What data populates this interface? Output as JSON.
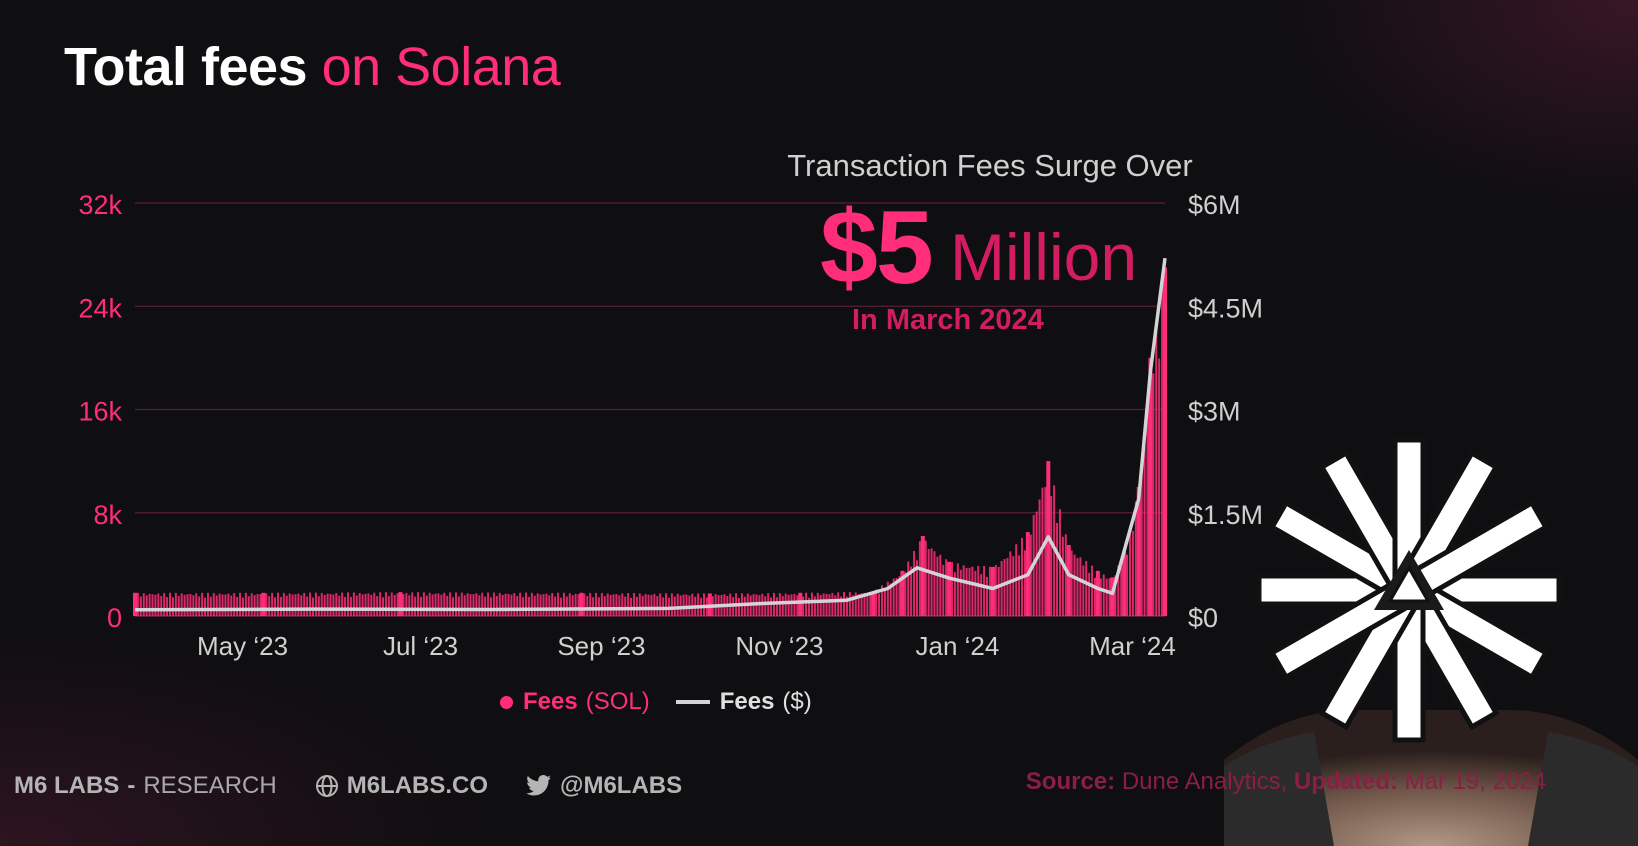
{
  "title": {
    "main": "Total fees",
    "accent": "on Solana"
  },
  "annotation": {
    "line1": "Transaction Fees Surge Over",
    "big": "$5",
    "unit": "Million",
    "date": "In March 2024"
  },
  "colors": {
    "accent": "#ff2d7a",
    "accent_dark": "#d41c63",
    "usd_line": "#d4d4d4",
    "gridline": "#5a1f35",
    "background": "#0f0e10"
  },
  "chart_data": {
    "type": "bar",
    "title": "Total fees on Solana",
    "grid": "horizontal",
    "legend_placement": "bottom-center",
    "x_axis": {
      "range": [
        "2023-04-01",
        "2024-03-19"
      ],
      "ticks": [
        {
          "date": "2023-05-01",
          "label": "May ‘23"
        },
        {
          "date": "2023-07-01",
          "label": "Jul ‘23"
        },
        {
          "date": "2023-09-01",
          "label": "Sep ‘23"
        },
        {
          "date": "2023-11-01",
          "label": "Nov ‘23"
        },
        {
          "date": "2024-01-01",
          "label": "Jan ‘24"
        },
        {
          "date": "2024-03-01",
          "label": "Mar ‘24"
        }
      ]
    },
    "y_left": {
      "range": [
        0,
        32000
      ],
      "ticks": [
        "0",
        "8k",
        "16k",
        "24k",
        "32k"
      ]
    },
    "y_right": {
      "range": [
        0,
        6000000
      ],
      "ticks": [
        "$0",
        "$1.5M",
        "$3M",
        "$4.5M",
        "$6M"
      ]
    },
    "series": [
      {
        "name": "Fees",
        "unit": "(SOL)",
        "type": "bar",
        "axis": "left",
        "points": [
          [
            "2023-04-01",
            1800
          ],
          [
            "2023-05-15",
            1800
          ],
          [
            "2023-07-01",
            1850
          ],
          [
            "2023-09-01",
            1800
          ],
          [
            "2023-10-15",
            1750
          ],
          [
            "2023-11-15",
            1800
          ],
          [
            "2023-12-10",
            1900
          ],
          [
            "2023-12-20",
            3500
          ],
          [
            "2023-12-27",
            6200
          ],
          [
            "2024-01-05",
            4200
          ],
          [
            "2024-01-20",
            3800
          ],
          [
            "2024-02-01",
            6500
          ],
          [
            "2024-02-08",
            12000
          ],
          [
            "2024-02-15",
            5500
          ],
          [
            "2024-02-25",
            3500
          ],
          [
            "2024-03-01",
            3000
          ],
          [
            "2024-03-05",
            5000
          ],
          [
            "2024-03-10",
            10000
          ],
          [
            "2024-03-14",
            20000
          ],
          [
            "2024-03-19",
            27000
          ]
        ]
      },
      {
        "name": "Fees",
        "unit": "($)",
        "type": "line",
        "axis": "right",
        "points": [
          [
            "2023-04-01",
            90000
          ],
          [
            "2023-06-01",
            100000
          ],
          [
            "2023-08-01",
            95000
          ],
          [
            "2023-10-01",
            110000
          ],
          [
            "2023-11-01",
            180000
          ],
          [
            "2023-12-01",
            230000
          ],
          [
            "2023-12-15",
            400000
          ],
          [
            "2023-12-25",
            700000
          ],
          [
            "2024-01-05",
            550000
          ],
          [
            "2024-01-20",
            400000
          ],
          [
            "2024-02-01",
            600000
          ],
          [
            "2024-02-08",
            1150000
          ],
          [
            "2024-02-15",
            600000
          ],
          [
            "2024-02-25",
            400000
          ],
          [
            "2024-03-01",
            330000
          ],
          [
            "2024-03-06",
            1100000
          ],
          [
            "2024-03-10",
            1700000
          ],
          [
            "2024-03-14",
            3550000
          ],
          [
            "2024-03-19",
            5200000
          ]
        ]
      }
    ]
  },
  "legend": {
    "sol": {
      "name": "Fees",
      "unit": "(SOL)"
    },
    "usd": {
      "name": "Fees",
      "unit": "($)"
    }
  },
  "footer": {
    "brand": "M6 LABS",
    "sep": "-",
    "research": "RESEARCH",
    "website": "M6LABS.CO",
    "twitter": "@M6LABS",
    "source_label": "Source:",
    "source_value": "Dune Analytics,",
    "updated_label": "Updated:",
    "updated_value": "Mar 19, 2024"
  }
}
